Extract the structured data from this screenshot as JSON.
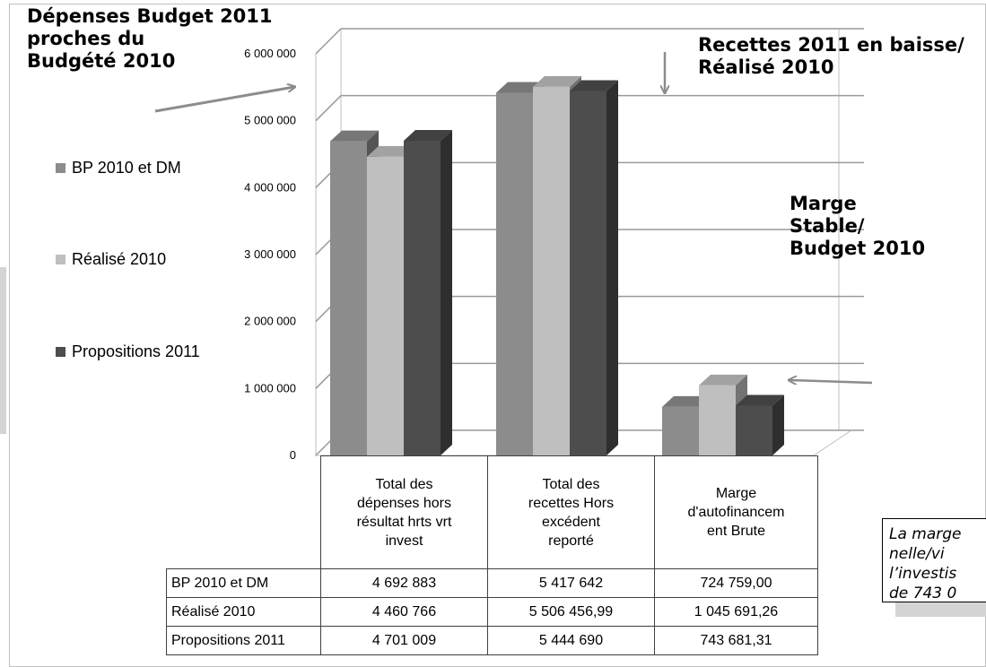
{
  "chart_data": {
    "type": "bar",
    "title": "",
    "categories": [
      "Total des\ndépenses hors\nrésultat hrts vrt\ninvest",
      "Total des\nrecettes Hors\nexcédent\nreporté",
      "Marge\nd'autofinancem\nent Brute"
    ],
    "series": [
      {
        "name": "BP 2010 et DM",
        "values": [
          4692883,
          5417642,
          724759.0
        ],
        "labels": [
          "4 692 883",
          "5 417 642",
          "724 759,00"
        ],
        "color": "#8c8c8c"
      },
      {
        "name": "Réalisé 2010",
        "values": [
          4460766,
          5506456.99,
          1045691.26
        ],
        "labels": [
          "4 460 766",
          "5 506 456,99",
          "1 045 691,26"
        ],
        "color": "#bfbfbf"
      },
      {
        "name": "Propositions 2011",
        "values": [
          4701009,
          5444690,
          743681.31
        ],
        "labels": [
          "4 701 009",
          "5 444 690",
          "743 681,31"
        ],
        "color": "#4d4d4d"
      }
    ],
    "yticks": [
      "0",
      "1 000 000",
      "2 000 000",
      "3 000 000",
      "4 000 000",
      "5 000 000",
      "6 000 000"
    ],
    "ylim": [
      0,
      6000000
    ],
    "grid": true,
    "legend": "left",
    "three_d": true,
    "data_table": true
  },
  "annotations": {
    "depenses": "Dépenses Budget 2011\n proches du\nBudgété 2010",
    "recettes": "Recettes 2011  en baisse/\nRéalisé 2010",
    "marge": "Marge\nStable/\nBudget 2010"
  },
  "textbox": {
    "text": "La marge\nnelle/vi\nl’investis\nde 743 0"
  }
}
